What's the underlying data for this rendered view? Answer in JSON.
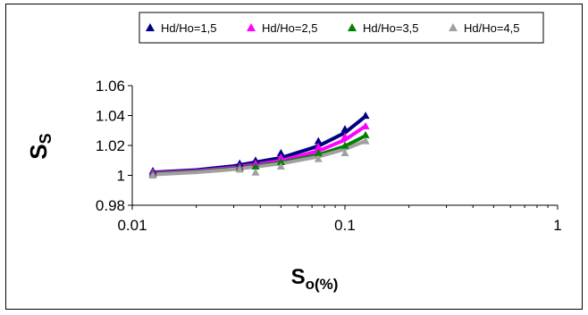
{
  "chart_data": {
    "type": "scatter",
    "xscale": "log",
    "xlim": [
      0.01,
      1
    ],
    "ylim": [
      0.98,
      1.06
    ],
    "xticks": [
      "0.01",
      "0.1",
      "1"
    ],
    "yticks": [
      "0.98",
      "1",
      "1.02",
      "1.04",
      "1.06"
    ],
    "ylabel_main": "S",
    "ylabel_sub": "S",
    "xlabel_main": "S",
    "xlabel_sub": "o(%)",
    "grid": "none",
    "legend_position": "top",
    "series": [
      {
        "name": "Hd/Ho=1,5",
        "color": "#000080",
        "marker": "triangle",
        "x": [
          0.0125,
          0.032,
          0.038,
          0.05,
          0.075,
          0.1,
          0.125
        ],
        "y": [
          1.003,
          1.008,
          1.01,
          1.015,
          1.023,
          1.031,
          1.04
        ],
        "fit": [
          [
            0.0125,
            1.002
          ],
          [
            0.02,
            1.0036
          ],
          [
            0.03,
            1.0062
          ],
          [
            0.05,
            1.0117
          ],
          [
            0.075,
            1.0196
          ],
          [
            0.1,
            1.0285
          ],
          [
            0.125,
            1.0395
          ]
        ]
      },
      {
        "name": "Hd/Ho=2,5",
        "color": "#ff00ff",
        "marker": "triangle",
        "x": [
          0.0125,
          0.032,
          0.038,
          0.05,
          0.075,
          0.1,
          0.125
        ],
        "y": [
          1.002,
          1.006,
          1.008,
          1.012,
          1.019,
          1.026,
          1.033
        ],
        "fit": [
          [
            0.0125,
            1.0015
          ],
          [
            0.02,
            1.003
          ],
          [
            0.03,
            1.0052
          ],
          [
            0.05,
            1.0098
          ],
          [
            0.075,
            1.0163
          ],
          [
            0.1,
            1.0237
          ],
          [
            0.125,
            1.033
          ]
        ]
      },
      {
        "name": "Hd/Ho=3,5",
        "color": "#008000",
        "marker": "triangle",
        "x": [
          0.0125,
          0.032,
          0.038,
          0.05,
          0.075,
          0.1,
          0.125
        ],
        "y": [
          1.001,
          1.005,
          1.006,
          1.009,
          1.015,
          1.02,
          1.027
        ],
        "fit": [
          [
            0.0125,
            1.001
          ],
          [
            0.02,
            1.0025
          ],
          [
            0.03,
            1.0045
          ],
          [
            0.05,
            1.0085
          ],
          [
            0.075,
            1.0137
          ],
          [
            0.1,
            1.0195
          ],
          [
            0.125,
            1.0265
          ]
        ]
      },
      {
        "name": "Hd/Ho=4,5",
        "color": "#a0a0a0",
        "marker": "triangle",
        "x": [
          0.0125,
          0.032,
          0.038,
          0.05,
          0.075,
          0.1,
          0.125
        ],
        "y": [
          1.0,
          1.004,
          1.002,
          1.006,
          1.011,
          1.015,
          1.023
        ],
        "fit": [
          [
            0.0125,
            1.0005
          ],
          [
            0.02,
            1.002
          ],
          [
            0.03,
            1.004
          ],
          [
            0.05,
            1.0078
          ],
          [
            0.075,
            1.0125
          ],
          [
            0.1,
            1.0175
          ],
          [
            0.125,
            1.023
          ]
        ]
      }
    ]
  }
}
